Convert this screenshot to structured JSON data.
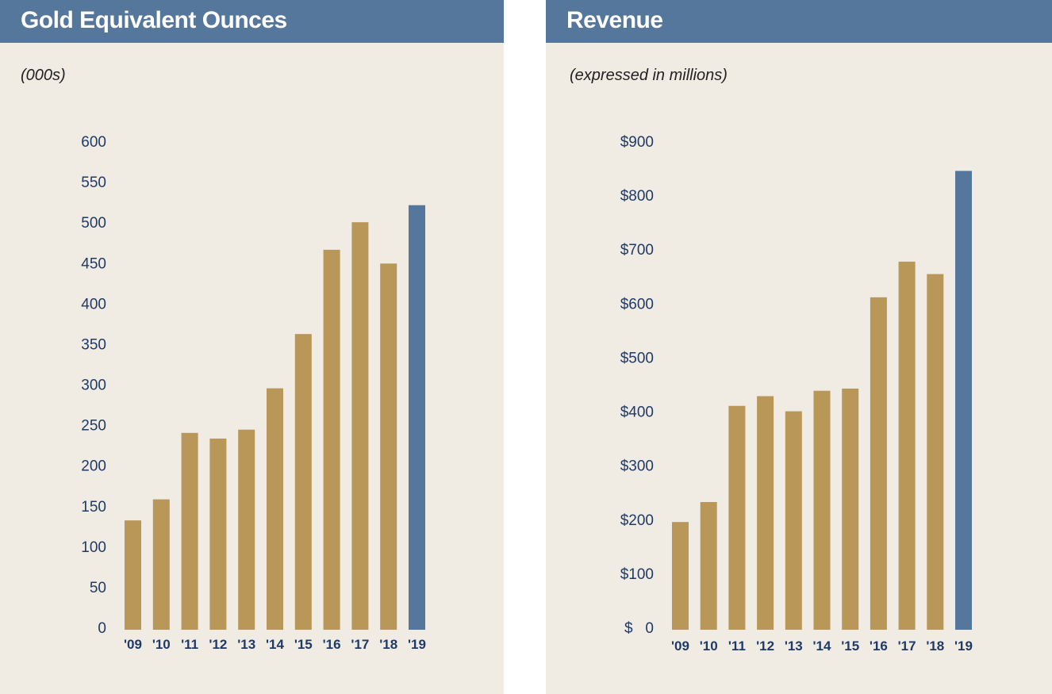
{
  "colors": {
    "header": "#55779b",
    "bar": "#b89758",
    "highlight": "#55779b",
    "panel_bg": "#f0ebe3",
    "axis_text": "#1f3a66"
  },
  "chart_data": [
    {
      "type": "bar",
      "title": "Gold Equivalent Ounces",
      "subtitle": "(000s)",
      "xlabel": "",
      "ylabel": "",
      "categories": [
        "'09",
        "'10",
        "'11",
        "'12",
        "'13",
        "'14",
        "'15",
        "'16",
        "'17",
        "'18",
        "'19"
      ],
      "values": [
        132,
        158,
        240,
        233,
        244,
        295,
        362,
        466,
        500,
        449,
        521
      ],
      "highlight_index": 10,
      "ylim": [
        0,
        600
      ],
      "yticks": [
        0,
        50,
        100,
        150,
        200,
        250,
        300,
        350,
        400,
        450,
        500,
        550,
        600
      ],
      "ytick_labels": [
        "0",
        "50",
        "100",
        "150",
        "200",
        "250",
        "300",
        "350",
        "400",
        "450",
        "500",
        "550",
        "600"
      ],
      "grid": false
    },
    {
      "type": "bar",
      "title": "Revenue",
      "subtitle": "(expressed in millions)",
      "xlabel": "",
      "ylabel": "",
      "categories": [
        "'09",
        "'10",
        "'11",
        "'12",
        "'13",
        "'14",
        "'15",
        "'16",
        "'17",
        "'18",
        "'19"
      ],
      "values": [
        195,
        232,
        410,
        428,
        400,
        438,
        442,
        611,
        677,
        654,
        845
      ],
      "highlight_index": 10,
      "ylim": [
        0,
        900
      ],
      "yticks": [
        0,
        100,
        200,
        300,
        400,
        500,
        600,
        700,
        800,
        900
      ],
      "ytick_labels": [
        "$   0",
        "$100",
        "$200",
        "$300",
        "$400",
        "$500",
        "$600",
        "$700",
        "$800",
        "$900"
      ],
      "grid": false
    }
  ]
}
